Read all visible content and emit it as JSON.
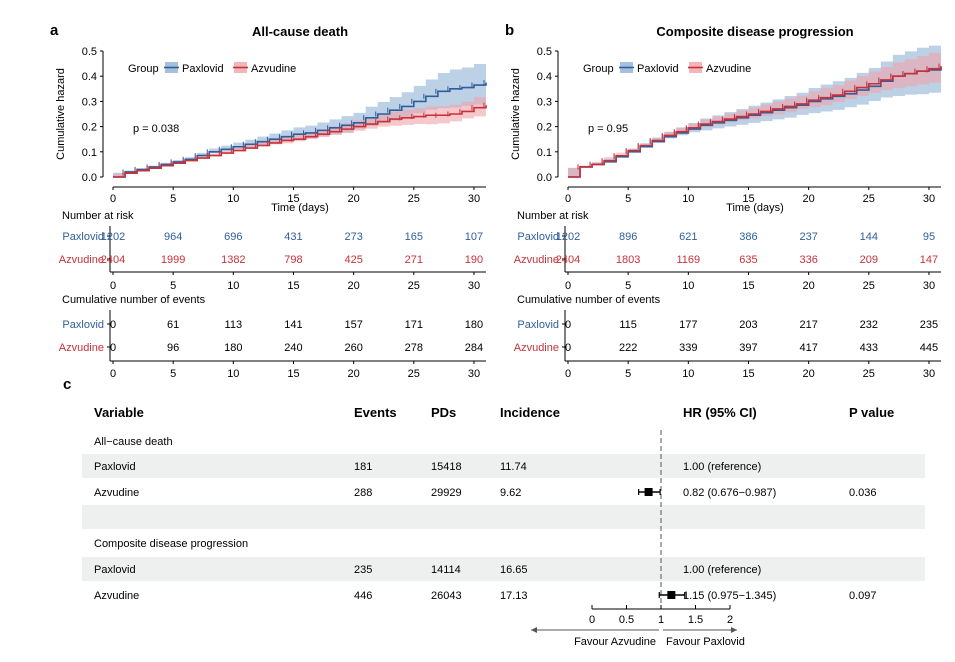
{
  "colors": {
    "paxlovid": "#2e5f9a",
    "azvudine": "#c8313a",
    "paxlovid_band": "#8fb0d6",
    "azvudine_band": "#f0a3a8",
    "row_band": "#eef0f0"
  },
  "panels": [
    {
      "tag": "a",
      "title": "All-cause death",
      "ylabel": "Cumulative hazard",
      "xlabel": "Time (days)",
      "legend_title": "Group",
      "pvalue": "p = 0.038",
      "risk_title": "Number at risk",
      "events_title": "Cumulative number of events",
      "risk": {
        "times": [
          0,
          5,
          10,
          15,
          20,
          25,
          30
        ],
        "paxlovid": [
          "1202",
          "964",
          "696",
          "431",
          "273",
          "165",
          "107"
        ],
        "azvudine": [
          "2404",
          "1999",
          "1382",
          "798",
          "425",
          "271",
          "190"
        ]
      },
      "events": {
        "times": [
          0,
          5,
          10,
          15,
          20,
          25,
          30
        ],
        "paxlovid": [
          "0",
          "61",
          "113",
          "141",
          "157",
          "171",
          "180"
        ],
        "azvudine": [
          "0",
          "96",
          "180",
          "240",
          "260",
          "278",
          "284"
        ]
      }
    },
    {
      "tag": "b",
      "title": "Composite disease progression",
      "ylabel": "Cumulative hazard",
      "xlabel": "Time (days)",
      "legend_title": "Group",
      "pvalue": "p = 0.95",
      "risk_title": "Number at risk",
      "events_title": "Cumulative number of events",
      "risk": {
        "times": [
          0,
          5,
          10,
          15,
          20,
          25,
          30
        ],
        "paxlovid": [
          "1202",
          "896",
          "621",
          "386",
          "237",
          "144",
          "95"
        ],
        "azvudine": [
          "2404",
          "1803",
          "1169",
          "635",
          "336",
          "209",
          "147"
        ]
      },
      "events": {
        "times": [
          0,
          5,
          10,
          15,
          20,
          25,
          30
        ],
        "paxlovid": [
          "0",
          "115",
          "177",
          "203",
          "217",
          "232",
          "235"
        ],
        "azvudine": [
          "0",
          "222",
          "339",
          "397",
          "417",
          "433",
          "445"
        ]
      }
    }
  ],
  "group_labels": {
    "paxlovid": "Paxlovid",
    "azvudine": "Azvudine"
  },
  "x_ticks": [
    0,
    5,
    10,
    15,
    20,
    25,
    30
  ],
  "y_ticks": [
    "0.0",
    "0.1",
    "0.2",
    "0.3",
    "0.4",
    "0.5"
  ],
  "forest": {
    "tag": "c",
    "headers": [
      "Variable",
      "Events",
      "PDs",
      "Incidence",
      "HR (95% CI)",
      "P value"
    ],
    "rows": [
      {
        "variable": "All−cause death",
        "events": "",
        "pds": "",
        "incidence": "",
        "hr": "",
        "p": "",
        "section": true
      },
      {
        "variable": "Paxlovid",
        "events": "181",
        "pds": "15418",
        "incidence": "11.74",
        "hr": "1.00 (reference)",
        "p": ""
      },
      {
        "variable": "Azvudine",
        "events": "288",
        "pds": "29929",
        "incidence": "9.62",
        "hr": "0.82 (0.676−0.987)",
        "p": "0.036"
      },
      {
        "variable": "",
        "events": "",
        "pds": "",
        "incidence": "",
        "hr": "",
        "p": ""
      },
      {
        "variable": "Composite disease progression",
        "events": "",
        "pds": "",
        "incidence": "",
        "hr": "",
        "p": "",
        "section": true
      },
      {
        "variable": "Paxlovid",
        "events": "235",
        "pds": "14114",
        "incidence": "16.65",
        "hr": "1.00 (reference)",
        "p": ""
      },
      {
        "variable": "Azvudine",
        "events": "446",
        "pds": "26043",
        "incidence": "17.13",
        "hr": "1.15 (0.975−1.345)",
        "p": "0.097"
      }
    ],
    "axis_ticks": [
      "0",
      "0.5",
      "1",
      "1.5",
      "2"
    ],
    "favour_left": "Favour Azvudine",
    "favour_right": "Favour Paxlovid"
  },
  "chart_data": [
    {
      "type": "line",
      "title": "All-cause death",
      "xlabel": "Time (days)",
      "ylabel": "Cumulative hazard",
      "xlim": [
        0,
        31
      ],
      "ylim": [
        0,
        0.5
      ],
      "series": [
        {
          "name": "Paxlovid",
          "x": [
            0,
            1,
            2,
            3,
            4,
            5,
            6,
            7,
            8,
            9,
            10,
            11,
            12,
            13,
            14,
            15,
            16,
            17,
            18,
            19,
            20,
            21,
            22,
            23,
            24,
            25,
            26,
            27,
            28,
            29,
            30,
            31
          ],
          "y": [
            0,
            0.02,
            0.03,
            0.04,
            0.05,
            0.06,
            0.07,
            0.085,
            0.1,
            0.11,
            0.12,
            0.13,
            0.14,
            0.15,
            0.16,
            0.17,
            0.175,
            0.185,
            0.195,
            0.205,
            0.215,
            0.235,
            0.25,
            0.265,
            0.28,
            0.3,
            0.32,
            0.34,
            0.35,
            0.355,
            0.365,
            0.375
          ]
        },
        {
          "name": "Azvudine",
          "x": [
            0,
            1,
            2,
            3,
            4,
            5,
            6,
            7,
            8,
            9,
            10,
            11,
            12,
            13,
            14,
            15,
            16,
            17,
            18,
            19,
            20,
            21,
            22,
            23,
            24,
            25,
            26,
            27,
            28,
            29,
            30,
            31
          ],
          "y": [
            0,
            0.015,
            0.025,
            0.035,
            0.045,
            0.055,
            0.065,
            0.075,
            0.085,
            0.095,
            0.105,
            0.115,
            0.125,
            0.135,
            0.145,
            0.15,
            0.16,
            0.17,
            0.18,
            0.19,
            0.2,
            0.21,
            0.22,
            0.23,
            0.235,
            0.24,
            0.245,
            0.245,
            0.25,
            0.26,
            0.275,
            0.285
          ]
        }
      ]
    },
    {
      "type": "line",
      "title": "Composite disease progression",
      "xlabel": "Time (days)",
      "ylabel": "Cumulative hazard",
      "xlim": [
        0,
        31
      ],
      "ylim": [
        0,
        0.5
      ],
      "series": [
        {
          "name": "Paxlovid",
          "x": [
            0,
            1,
            2,
            3,
            4,
            5,
            6,
            7,
            8,
            9,
            10,
            11,
            12,
            13,
            14,
            15,
            16,
            17,
            18,
            19,
            20,
            21,
            22,
            23,
            24,
            25,
            26,
            27,
            28,
            29,
            30,
            31
          ],
          "y": [
            0,
            0.04,
            0.05,
            0.06,
            0.08,
            0.1,
            0.12,
            0.14,
            0.16,
            0.175,
            0.19,
            0.205,
            0.215,
            0.225,
            0.235,
            0.245,
            0.255,
            0.265,
            0.275,
            0.285,
            0.3,
            0.31,
            0.32,
            0.33,
            0.345,
            0.36,
            0.38,
            0.4,
            0.41,
            0.42,
            0.425,
            0.435
          ]
        },
        {
          "name": "Azvudine",
          "x": [
            0,
            1,
            2,
            3,
            4,
            5,
            6,
            7,
            8,
            9,
            10,
            11,
            12,
            13,
            14,
            15,
            16,
            17,
            18,
            19,
            20,
            21,
            22,
            23,
            24,
            25,
            26,
            27,
            28,
            29,
            30,
            31
          ],
          "y": [
            0,
            0.04,
            0.05,
            0.065,
            0.085,
            0.105,
            0.125,
            0.145,
            0.165,
            0.18,
            0.195,
            0.21,
            0.22,
            0.23,
            0.24,
            0.25,
            0.26,
            0.27,
            0.28,
            0.29,
            0.305,
            0.315,
            0.325,
            0.34,
            0.355,
            0.37,
            0.385,
            0.4,
            0.41,
            0.42,
            0.43,
            0.44
          ]
        }
      ]
    },
    {
      "type": "scatter",
      "title": "",
      "xlabel": "",
      "ylabel": "",
      "xlim": [
        0,
        2
      ],
      "series": [
        {
          "name": "",
          "x": [
            0.82,
            1.15
          ],
          "y": [
            "Azvudine",
            "Azvudine"
          ],
          "ci_low": [
            0.676,
            0.975
          ],
          "ci_high": [
            0.987,
            1.345
          ]
        }
      ]
    }
  ]
}
